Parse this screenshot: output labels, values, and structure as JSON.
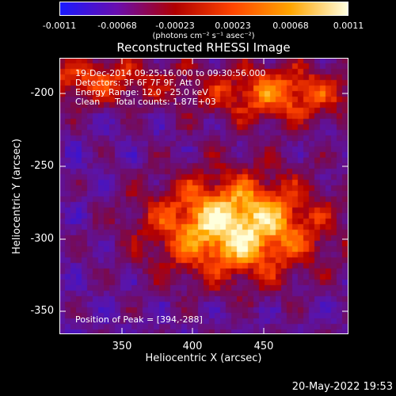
{
  "colorbar": {
    "tick_labels": [
      "-0.0011",
      "-0.00068",
      "-0.00023",
      "0.00023",
      "0.00068",
      "0.0011"
    ],
    "unit_label": "(photons cm⁻² s⁻¹ asec⁻²)",
    "colors": [
      "#1a1aff",
      "#6a0dad",
      "#b00000",
      "#ff4500",
      "#ffa500",
      "#ffffe0"
    ]
  },
  "plot": {
    "title": "Reconstructed RHESSI Image",
    "info_lines": [
      "19-Dec-2014 09:25:16.000 to 09:30:56.000",
      "Detectors: 3F 6F 7F 9F, Att 0",
      "Energy Range: 12.0 - 25.0 keV"
    ],
    "clean_label": "Clean",
    "counts_label": "Total counts: 1.87E+03",
    "peak_label": "Position of Peak = [394,-288]",
    "x_axis": {
      "label": "Heliocentric X (arcsec)",
      "ticks": [
        "350",
        "400",
        "450"
      ],
      "range": [
        305,
        495
      ]
    },
    "y_axis": {
      "label": "Heliocentric Y (arcsec)",
      "ticks": [
        "-200",
        "-250",
        "-300",
        "-350"
      ],
      "range": [
        -372,
        -181
      ]
    }
  },
  "timestamp": "20-May-2022 19:53"
}
